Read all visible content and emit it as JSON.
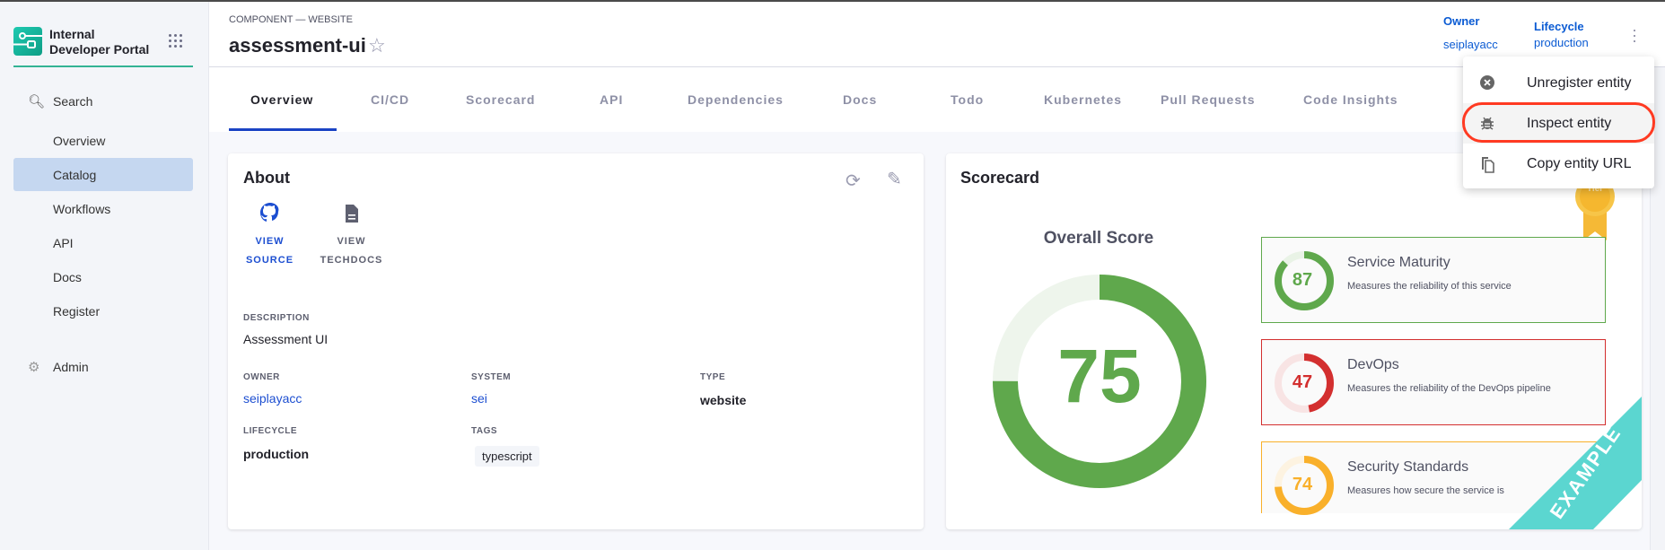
{
  "sidebar": {
    "brand": "Internal Developer Portal",
    "items": [
      {
        "label": "Search",
        "icon": "search-icon"
      },
      {
        "label": "Overview"
      },
      {
        "label": "Catalog",
        "active": true
      },
      {
        "label": "Workflows"
      },
      {
        "label": "API"
      },
      {
        "label": "Docs"
      },
      {
        "label": "Register"
      },
      {
        "label": "Admin",
        "icon": "gear-icon"
      }
    ]
  },
  "header": {
    "kind": "COMPONENT — WEBSITE",
    "title": "assessment-ui",
    "owner_label": "Owner",
    "owner": "seiplayacc",
    "lifecycle_label": "Lifecycle",
    "lifecycle": "production"
  },
  "tabs": [
    "Overview",
    "CI/CD",
    "Scorecard",
    "API",
    "Dependencies",
    "Docs",
    "Todo",
    "Kubernetes",
    "Pull Requests",
    "Code Insights"
  ],
  "about": {
    "title": "About",
    "view_source": [
      "VIEW",
      "SOURCE"
    ],
    "view_techdocs": [
      "VIEW",
      "TECHDOCS"
    ],
    "description_label": "DESCRIPTION",
    "description": "Assessment UI",
    "owner_label": "OWNER",
    "owner": "seiplayacc",
    "system_label": "SYSTEM",
    "system": "sei",
    "type_label": "TYPE",
    "type": "website",
    "lifecycle_label": "LIFECYCLE",
    "lifecycle": "production",
    "tags_label": "TAGS",
    "tags": [
      "typescript"
    ]
  },
  "scorecard": {
    "title": "Scorecard",
    "overall_label": "Overall Score",
    "overall": 75,
    "overall_color": "#5fa84c",
    "ribbon": "EXAMPLE",
    "ribbon_color": "#5bd6d0",
    "checks": [
      {
        "name": "Service Maturity",
        "desc": "Measures the reliability of this service",
        "score": 87,
        "color": "#5fa84c",
        "track": "#e9f3e6"
      },
      {
        "name": "DevOps",
        "desc": "Measures the reliability of the DevOps pipeline",
        "score": 47,
        "color": "#d32f2f",
        "track": "#f8e4e4"
      },
      {
        "name": "Security Standards",
        "desc": "Measures how secure the service is",
        "score": 74,
        "color": "#f9b02b",
        "track": "#fdf3e1"
      }
    ]
  },
  "menu": {
    "items": [
      {
        "label": "Unregister entity",
        "icon": "cancel-circle-icon"
      },
      {
        "label": "Inspect entity",
        "icon": "bug-icon",
        "highlighted": true
      },
      {
        "label": "Copy entity URL",
        "icon": "copy-icon"
      }
    ]
  }
}
